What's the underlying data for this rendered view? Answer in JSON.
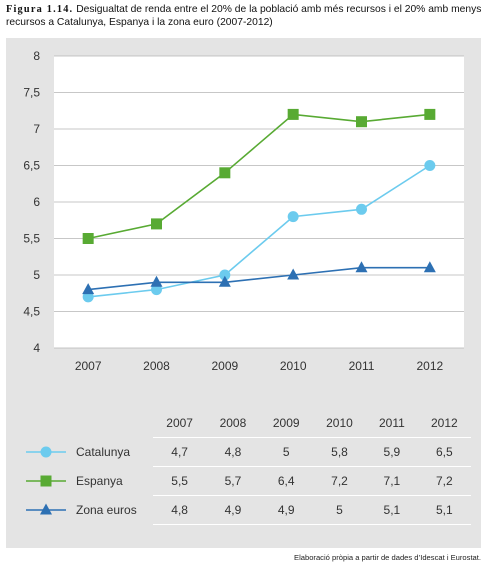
{
  "caption": {
    "figure": "Figura 1.14.",
    "text": "Desigualtat de renda entre el 20% de la població amb més recursos i el 20% amb menys recursos a Catalunya, Espanya i la zona euro (2007-2012)"
  },
  "source": "Elaboració pròpia a partir de dades d’Idescat i Eurostat.",
  "chart_data": {
    "type": "line",
    "title": "",
    "xlabel": "",
    "ylabel": "",
    "categories": [
      "2007",
      "2008",
      "2009",
      "2010",
      "2011",
      "2012"
    ],
    "ylim": [
      4,
      8
    ],
    "yticks": [
      "4",
      "4,5",
      "5",
      "5,5",
      "6",
      "6,5",
      "7",
      "7,5",
      "8"
    ],
    "grid": true,
    "series": [
      {
        "name": "Catalunya",
        "values": [
          4.7,
          4.8,
          5,
          5.8,
          5.9,
          6.5
        ],
        "labels": [
          "4,7",
          "4,8",
          "5",
          "5,8",
          "5,9",
          "6,5"
        ],
        "color": "#6ccbee",
        "marker": "circle"
      },
      {
        "name": "Espanya",
        "values": [
          5.5,
          5.7,
          6.4,
          7.2,
          7.1,
          7.2
        ],
        "labels": [
          "5,5",
          "5,7",
          "6,4",
          "7,2",
          "7,1",
          "7,2"
        ],
        "color": "#58aa33",
        "marker": "square"
      },
      {
        "name": "Zona euros",
        "values": [
          4.8,
          4.9,
          4.9,
          5,
          5.1,
          5.1
        ],
        "labels": [
          "4,8",
          "4,9",
          "4,9",
          "5",
          "5,1",
          "5,1"
        ],
        "color": "#2d70b3",
        "marker": "triangle"
      }
    ]
  }
}
